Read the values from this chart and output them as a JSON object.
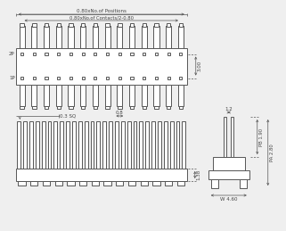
{
  "bg_color": "#efefef",
  "line_color": "#555555",
  "text_color": "#444444",
  "n_pins": 14,
  "top_view": {
    "dim1_text": "0.80xNo.of Positions",
    "dim2_text": "0.80xNo.of Contacts/2-0.80",
    "dim_right_text": "3.00",
    "label_2p": "2P",
    "label_1p": "1P"
  },
  "bottom_view": {
    "dim1_text": "0.3 SQ",
    "dim2_text": "0.8",
    "dim3_text": "1.38"
  },
  "side_view": {
    "dim1_text": "1.2",
    "dim2_text": "PB 1.90",
    "dim3_text": "PA 2.80",
    "dim4_text": "W 4.60"
  }
}
